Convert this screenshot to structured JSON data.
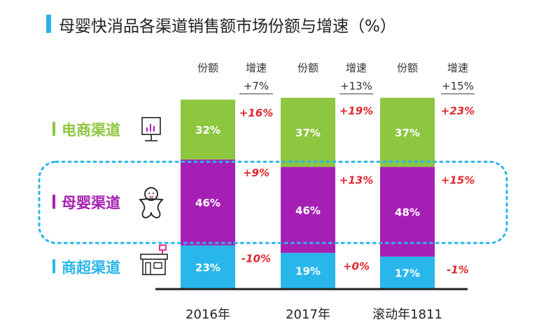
{
  "title": "母婴快消品各渠道销售额市场份额与增速（%）",
  "chart_data": {
    "type": "bar",
    "stacked": true,
    "categories": [
      "2016年",
      "2017年",
      "滚动年1811"
    ],
    "header_labels": {
      "share": "份额",
      "growth": "增速"
    },
    "total_growth": [
      "+7%",
      "+13%",
      "+15%"
    ],
    "series": [
      {
        "name": "电商渠道",
        "color": "#8dc63f",
        "values": [
          32,
          37,
          37
        ],
        "labels": [
          "32%",
          "37%",
          "37%"
        ],
        "growth": [
          "+16%",
          "+19%",
          "+23%"
        ]
      },
      {
        "name": "母婴渠道",
        "color": "#a51fb4",
        "values": [
          46,
          46,
          48
        ],
        "labels": [
          "46%",
          "46%",
          "48%"
        ],
        "growth": [
          "+9%",
          "+13%",
          "+15%"
        ]
      },
      {
        "name": "商超渠道",
        "color": "#29b6ea",
        "values": [
          23,
          19,
          17
        ],
        "labels": [
          "23%",
          "19%",
          "17%"
        ],
        "growth": [
          "-10%",
          "+0%",
          "-1%"
        ]
      }
    ],
    "highlight_series": "母婴渠道",
    "colors": {
      "highlight_border": "#29b6ea",
      "growth_text": "#e0262e",
      "axis": "#222222"
    }
  }
}
